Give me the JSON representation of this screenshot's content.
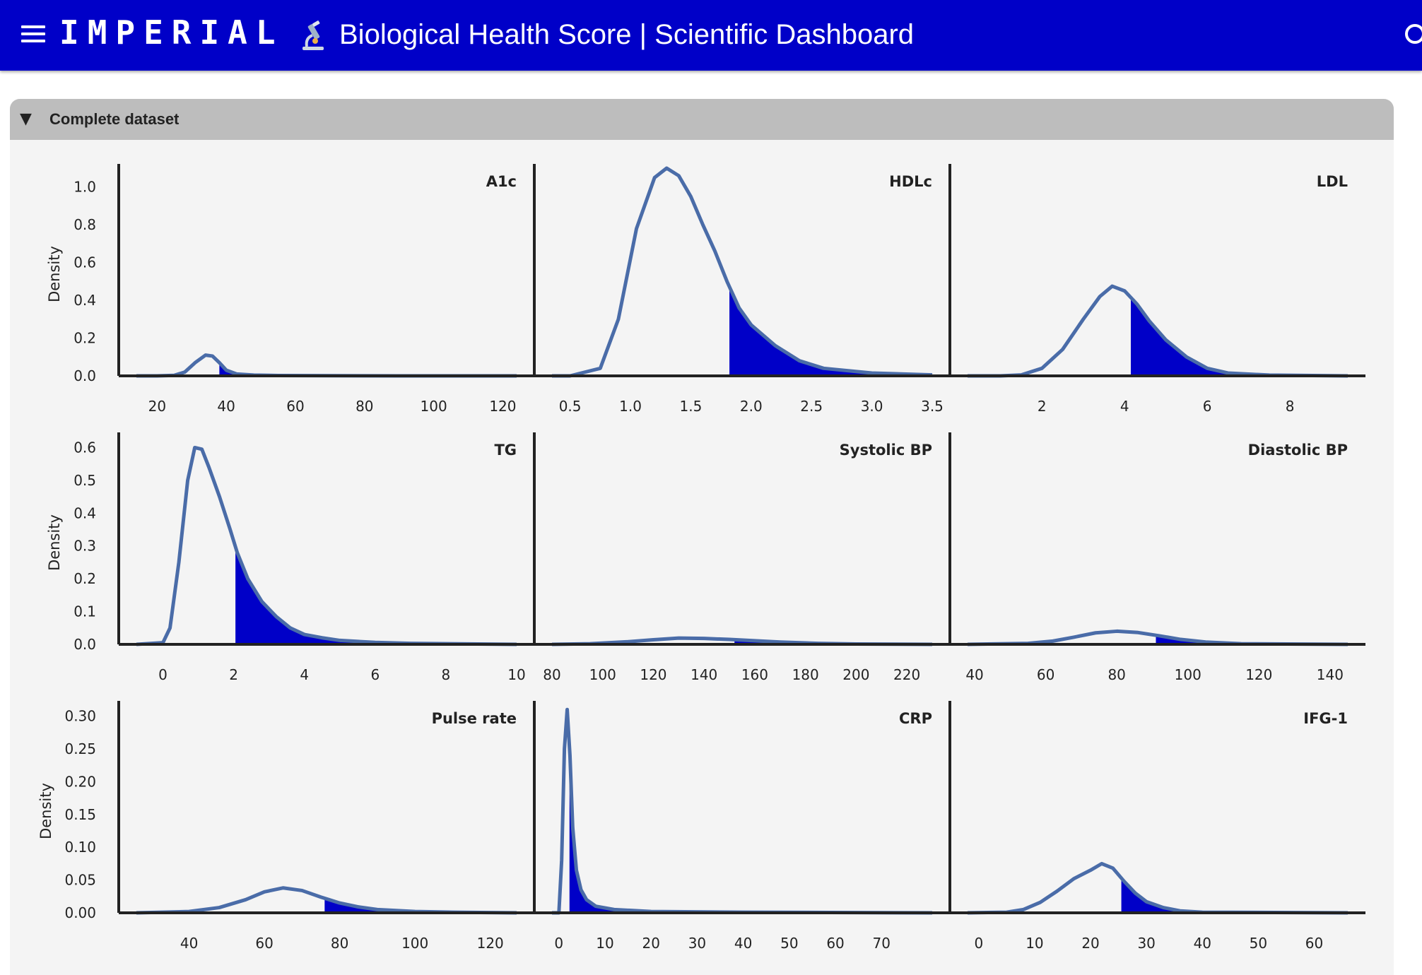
{
  "header": {
    "brand": "IMPERIAL",
    "title": "Biological Health Score | Scientific Dashboard",
    "menu_icon": "hamburger-menu-icon",
    "scope_icon": "microscope-icon",
    "search_icon": "search-icon",
    "bar_color": "#0000c8"
  },
  "section": {
    "caret": "▼",
    "title": "Complete dataset"
  },
  "colors": {
    "curve": "#4a6ca8",
    "fill": "#0000c8"
  },
  "chart_data": [
    {
      "type": "area",
      "title": "A1c",
      "ylabel": "Density",
      "xlim": [
        14,
        124
      ],
      "ylim": [
        0,
        1.1
      ],
      "xticks": [
        20,
        40,
        60,
        80,
        100,
        120
      ],
      "yticks": [
        0.0,
        0.2,
        0.4,
        0.6,
        0.8,
        1.0
      ],
      "x": [
        14,
        20,
        25,
        28,
        31,
        34,
        36,
        38,
        40,
        43,
        48,
        55,
        70,
        90,
        124
      ],
      "y": [
        0,
        0,
        0.003,
        0.02,
        0.07,
        0.11,
        0.105,
        0.07,
        0.03,
        0.01,
        0.004,
        0.002,
        0.001,
        0,
        0
      ],
      "shade_from": 38
    },
    {
      "type": "area",
      "title": "HDLc",
      "ylabel": "",
      "xlim": [
        0.35,
        3.5
      ],
      "ylim": [
        0,
        1.1
      ],
      "xticks": [
        0.5,
        1.0,
        1.5,
        2.0,
        2.5,
        3.0,
        3.5
      ],
      "yticks": [
        0.0,
        0.2,
        0.4,
        0.6,
        0.8,
        1.0
      ],
      "x": [
        0.35,
        0.5,
        0.75,
        0.9,
        1.05,
        1.2,
        1.3,
        1.4,
        1.5,
        1.6,
        1.7,
        1.8,
        1.9,
        2.0,
        2.2,
        2.4,
        2.6,
        3.0,
        3.5
      ],
      "y": [
        0,
        0.0,
        0.04,
        0.3,
        0.78,
        1.05,
        1.1,
        1.06,
        0.95,
        0.8,
        0.66,
        0.5,
        0.36,
        0.27,
        0.16,
        0.08,
        0.04,
        0.015,
        0.005
      ],
      "shade_from": 1.82
    },
    {
      "type": "area",
      "title": "LDL",
      "ylabel": "",
      "xlim": [
        0.2,
        9.4
      ],
      "ylim": [
        0,
        1.1
      ],
      "xticks": [
        2,
        4,
        6,
        8
      ],
      "yticks": [
        0.0,
        0.2,
        0.4,
        0.6,
        0.8,
        1.0
      ],
      "x": [
        0.2,
        1.0,
        1.5,
        2.0,
        2.5,
        3.0,
        3.4,
        3.7,
        4.0,
        4.3,
        4.6,
        5.0,
        5.5,
        6.0,
        6.5,
        7.5,
        9.4
      ],
      "y": [
        0,
        0,
        0.005,
        0.04,
        0.14,
        0.3,
        0.42,
        0.475,
        0.45,
        0.38,
        0.29,
        0.19,
        0.1,
        0.04,
        0.015,
        0.004,
        0
      ],
      "shade_from": 4.15
    },
    {
      "type": "area",
      "title": "TG",
      "ylabel": "Density",
      "xlim": [
        -0.75,
        10
      ],
      "ylim": [
        0,
        0.6333
      ],
      "xticks": [
        0,
        2,
        4,
        6,
        8,
        10
      ],
      "yticks": [
        0.0,
        0.1,
        0.2,
        0.3,
        0.4,
        0.5,
        0.6
      ],
      "x": [
        -0.75,
        0,
        0.2,
        0.45,
        0.7,
        0.9,
        1.1,
        1.3,
        1.6,
        1.9,
        2.1,
        2.4,
        2.8,
        3.2,
        3.6,
        4.0,
        4.5,
        5.0,
        6.0,
        7.0,
        10
      ],
      "y": [
        0,
        0.005,
        0.05,
        0.25,
        0.5,
        0.6,
        0.595,
        0.54,
        0.45,
        0.35,
        0.28,
        0.2,
        0.13,
        0.085,
        0.05,
        0.03,
        0.02,
        0.012,
        0.006,
        0.003,
        0
      ],
      "shade_from": 2.05
    },
    {
      "type": "area",
      "title": "Systolic BP",
      "ylabel": "",
      "xlim": [
        80,
        230
      ],
      "ylim": [
        0,
        0.6333
      ],
      "xticks": [
        80,
        100,
        120,
        140,
        160,
        180,
        200,
        220
      ],
      "yticks": [
        0.0,
        0.1,
        0.2,
        0.3,
        0.4,
        0.5,
        0.6
      ],
      "x": [
        80,
        95,
        110,
        120,
        130,
        140,
        150,
        160,
        170,
        185,
        200,
        230
      ],
      "y": [
        0,
        0.002,
        0.008,
        0.014,
        0.019,
        0.018,
        0.015,
        0.011,
        0.007,
        0.003,
        0.001,
        0
      ],
      "shade_from": 152
    },
    {
      "type": "area",
      "title": "Diastolic BP",
      "ylabel": "",
      "xlim": [
        38,
        145
      ],
      "ylim": [
        0,
        0.6333
      ],
      "xticks": [
        40,
        60,
        80,
        100,
        120,
        140
      ],
      "yticks": [
        0.0,
        0.1,
        0.2,
        0.3,
        0.4,
        0.5,
        0.6
      ],
      "x": [
        38,
        55,
        62,
        68,
        74,
        80,
        86,
        92,
        98,
        105,
        115,
        145
      ],
      "y": [
        0,
        0.003,
        0.01,
        0.022,
        0.035,
        0.04,
        0.036,
        0.026,
        0.015,
        0.007,
        0.002,
        0
      ],
      "shade_from": 91
    },
    {
      "type": "area",
      "title": "Pulse rate",
      "ylabel": "Density",
      "xlim": [
        26,
        127
      ],
      "ylim": [
        0,
        0.3167
      ],
      "xticks": [
        40,
        60,
        80,
        100,
        120
      ],
      "yticks": [
        0.0,
        0.05,
        0.1,
        0.15,
        0.2,
        0.25,
        0.3
      ],
      "x": [
        26,
        40,
        48,
        55,
        60,
        65,
        70,
        75,
        80,
        85,
        90,
        100,
        110,
        127
      ],
      "y": [
        0,
        0.002,
        0.008,
        0.02,
        0.032,
        0.038,
        0.034,
        0.024,
        0.015,
        0.009,
        0.005,
        0.002,
        0.001,
        0
      ],
      "shade_from": 76
    },
    {
      "type": "area",
      "title": "CRP",
      "ylabel": "",
      "xlim": [
        -1.5,
        81
      ],
      "ylim": [
        0,
        0.3167
      ],
      "xticks": [
        0,
        10,
        20,
        30,
        40,
        50,
        60,
        70
      ],
      "yticks": [
        0.0,
        0.05,
        0.1,
        0.15,
        0.2,
        0.25,
        0.3
      ],
      "x": [
        -1.5,
        0,
        0.6,
        1.2,
        1.8,
        2.4,
        3.0,
        3.8,
        4.8,
        6,
        8,
        12,
        20,
        40,
        81
      ],
      "y": [
        0,
        0.0,
        0.08,
        0.25,
        0.31,
        0.24,
        0.13,
        0.065,
        0.035,
        0.02,
        0.01,
        0.005,
        0.002,
        0.001,
        0
      ],
      "shade_from": 2.3
    },
    {
      "type": "area",
      "title": "IFG-1",
      "ylabel": "",
      "xlim": [
        -2,
        66
      ],
      "ylim": [
        0,
        0.3167
      ],
      "xticks": [
        0,
        10,
        20,
        30,
        40,
        50,
        60
      ],
      "yticks": [
        0.0,
        0.05,
        0.1,
        0.15,
        0.2,
        0.25,
        0.3
      ],
      "x": [
        -2,
        5,
        8,
        11,
        14,
        17,
        20,
        22,
        24,
        26,
        28,
        30,
        33,
        36,
        40,
        66
      ],
      "y": [
        0,
        0.001,
        0.005,
        0.016,
        0.033,
        0.052,
        0.065,
        0.075,
        0.068,
        0.048,
        0.03,
        0.017,
        0.008,
        0.003,
        0.001,
        0
      ],
      "shade_from": 25.5
    }
  ]
}
